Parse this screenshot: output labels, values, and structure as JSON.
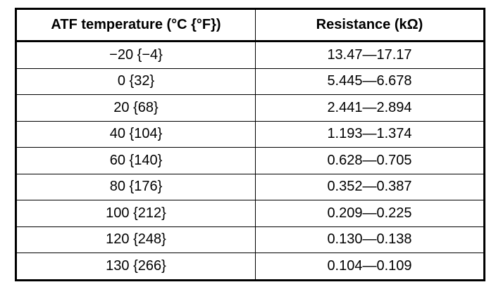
{
  "table": {
    "header": [
      "ATF temperature (°C {°F})",
      "Resistance (kΩ)"
    ],
    "rows": [
      [
        "−20 {−4}",
        "13.47—17.17"
      ],
      [
        "0 {32}",
        "5.445—6.678"
      ],
      [
        "20 {68}",
        "2.441—2.894"
      ],
      [
        "40 {104}",
        "1.193—1.374"
      ],
      [
        "60 {140}",
        "0.628—0.705"
      ],
      [
        "80 {176}",
        "0.352—0.387"
      ],
      [
        "100 {212}",
        "0.209—0.225"
      ],
      [
        "120 {248}",
        "0.130—0.138"
      ],
      [
        "130 {266}",
        "0.104—0.109"
      ]
    ]
  }
}
